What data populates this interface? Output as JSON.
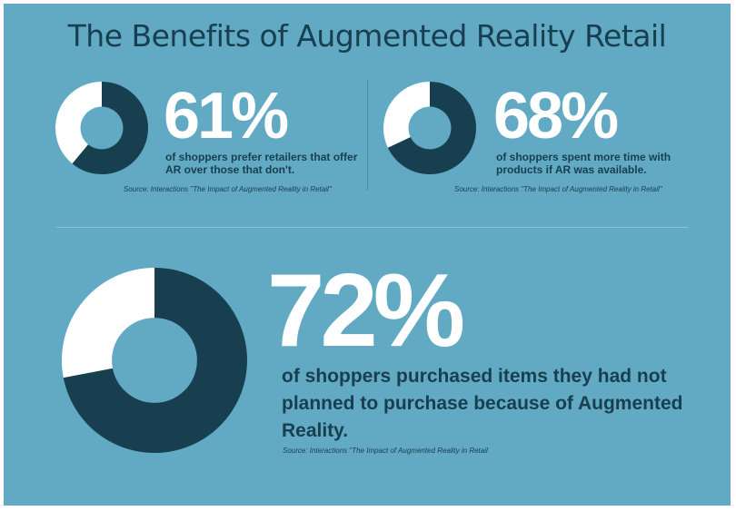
{
  "title": "The Benefits of Augmented Reality Retail",
  "stats": [
    {
      "percent": "61%",
      "description": "of shoppers prefer retailers that offer AR over those that don't.",
      "source": "Source: Interactions \"The Impact of Augmented Reality in Retail\""
    },
    {
      "percent": "68%",
      "description": "of shoppers spent more time with products if AR was available.",
      "source": "Source: Interactions \"The Impact of Augmented Reality in Retail\""
    },
    {
      "percent": "72%",
      "description": "of shoppers purchased items they had not planned to purchase because of Augmented Reality.",
      "source": "Source: Interactions \"The Impact of Augmented Reality in Retail"
    }
  ],
  "colors": {
    "background": "#62a9c3",
    "filled": "#173f4f",
    "remainder": "#ffffff"
  },
  "chart_data": [
    {
      "type": "pie",
      "values": [
        61,
        39
      ]
    },
    {
      "type": "pie",
      "values": [
        68,
        32
      ]
    },
    {
      "type": "pie",
      "values": [
        72,
        28
      ]
    }
  ]
}
